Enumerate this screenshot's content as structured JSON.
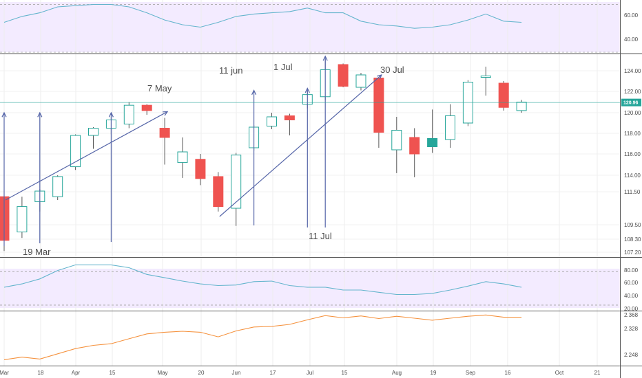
{
  "chart_data": {
    "type": "candlestick",
    "price_panel": {
      "y_ticks": [
        "124.00",
        "122.00",
        "120.00",
        "118.00",
        "116.00",
        "114.00",
        "111.50",
        "109.50",
        "108.30",
        "107.20"
      ],
      "last_price_label": "120.96",
      "last_price": 120.96,
      "colors": {
        "up_body": "#ffffff",
        "up_border": "#26a69a",
        "down": "#ef5350",
        "filled_up": "#26a69a",
        "wick": "#555555",
        "last_line": "#26a69a",
        "arrow": "#5565a8"
      },
      "candles": [
        {
          "open": 111.2,
          "high": 111.6,
          "low": 107.3,
          "close": 108.2,
          "style": "down"
        },
        {
          "open": 108.9,
          "high": 111.2,
          "low": 108.4,
          "close": 110.6,
          "style": "up"
        },
        {
          "open": 110.9,
          "high": 111.9,
          "low": 110.3,
          "close": 111.6,
          "style": "up"
        },
        {
          "open": 111.2,
          "high": 114.0,
          "low": 111.0,
          "close": 113.8,
          "style": "up"
        },
        {
          "open": 114.8,
          "high": 117.9,
          "low": 114.5,
          "close": 117.8,
          "style": "up"
        },
        {
          "open": 117.8,
          "high": 118.6,
          "low": 116.5,
          "close": 118.5,
          "style": "up"
        },
        {
          "open": 118.5,
          "high": 119.6,
          "low": 117.9,
          "close": 119.3,
          "style": "up"
        },
        {
          "open": 118.9,
          "high": 121.0,
          "low": 118.5,
          "close": 120.7,
          "style": "up"
        },
        {
          "open": 120.7,
          "high": 120.8,
          "low": 119.8,
          "close": 120.2,
          "style": "down"
        },
        {
          "open": 118.5,
          "high": 119.5,
          "low": 115.0,
          "close": 117.6,
          "style": "down"
        },
        {
          "open": 116.2,
          "high": 117.6,
          "low": 113.6,
          "close": 115.2,
          "style": "up"
        },
        {
          "open": 115.5,
          "high": 116.0,
          "low": 112.5,
          "close": 113.5,
          "style": "down"
        },
        {
          "open": 113.8,
          "high": 114.3,
          "low": 110.3,
          "close": 110.6,
          "style": "down"
        },
        {
          "open": 110.5,
          "high": 116.1,
          "low": 109.4,
          "close": 115.9,
          "style": "up"
        },
        {
          "open": 116.6,
          "high": 118.8,
          "low": 116.3,
          "close": 118.6,
          "style": "up"
        },
        {
          "open": 118.7,
          "high": 120.0,
          "low": 118.4,
          "close": 119.6,
          "style": "up"
        },
        {
          "open": 119.7,
          "high": 119.9,
          "low": 117.8,
          "close": 119.3,
          "style": "down"
        },
        {
          "open": 120.8,
          "high": 122.0,
          "low": 120.4,
          "close": 121.7,
          "style": "up"
        },
        {
          "open": 121.5,
          "high": 125.1,
          "low": 121.2,
          "close": 124.1,
          "style": "up"
        },
        {
          "open": 124.6,
          "high": 124.7,
          "low": 122.4,
          "close": 122.5,
          "style": "down"
        },
        {
          "open": 122.4,
          "high": 123.8,
          "low": 122.1,
          "close": 123.6,
          "style": "up"
        },
        {
          "open": 123.3,
          "high": 123.4,
          "low": 116.6,
          "close": 118.1,
          "style": "down"
        },
        {
          "open": 116.4,
          "high": 119.6,
          "low": 114.2,
          "close": 118.3,
          "style": "up"
        },
        {
          "open": 117.6,
          "high": 118.5,
          "low": 113.7,
          "close": 116.0,
          "style": "down"
        },
        {
          "open": 116.7,
          "high": 120.3,
          "low": 116.1,
          "close": 117.5,
          "style": "filled_up"
        },
        {
          "open": 117.4,
          "high": 120.8,
          "low": 116.6,
          "close": 119.7,
          "style": "up"
        },
        {
          "open": 119.0,
          "high": 123.1,
          "low": 118.7,
          "close": 122.9,
          "style": "up"
        },
        {
          "open": 123.4,
          "high": 124.4,
          "low": 121.6,
          "close": 123.5,
          "style": "up"
        },
        {
          "open": 122.8,
          "high": 123.0,
          "low": 120.2,
          "close": 120.5,
          "style": "down"
        },
        {
          "open": 120.2,
          "high": 121.2,
          "low": 120.0,
          "close": 121.0,
          "style": "up"
        }
      ],
      "vertical_arrows": [
        {
          "candle": 0,
          "top": 120.0
        },
        {
          "candle": 2,
          "top": 120.0
        },
        {
          "candle": 6,
          "top": 120.0
        },
        {
          "candle": 14,
          "top": 122.1
        },
        {
          "candle": 17,
          "top": 122.3
        },
        {
          "candle": 18,
          "top": 125.4
        }
      ],
      "diagonal_arrows": [
        {
          "from_candle": 0,
          "from": 111.0,
          "to_candle": 9,
          "to": 120.1
        },
        {
          "from_candle": 12,
          "from": 110.0,
          "to_candle": 21,
          "to": 123.6
        }
      ],
      "annotations": [
        "19 Mar",
        "7 May",
        "11 jun",
        "1 Jul",
        "11 Jul",
        "30 Jul"
      ]
    },
    "top_indicator": {
      "y_ticks": [
        "60.00",
        "40.00"
      ],
      "ylim": [
        30,
        72
      ],
      "levels": [
        70,
        30
      ],
      "values": [
        55,
        60,
        63,
        68,
        69,
        70,
        70,
        68,
        63,
        57,
        53,
        51,
        55,
        60,
        62,
        63,
        64,
        67,
        63,
        63,
        56,
        53,
        52,
        50,
        51,
        53,
        57,
        62,
        56,
        55
      ]
    },
    "mid_indicator": {
      "y_ticks": [
        "80.00",
        "60.00",
        "40.00",
        "20.00"
      ],
      "ylim": [
        15,
        95
      ],
      "levels": [
        80,
        20
      ],
      "values": [
        52,
        58,
        67,
        82,
        92,
        92,
        92,
        87,
        75,
        69,
        63,
        58,
        55,
        56,
        62,
        63,
        55,
        52,
        52,
        47,
        47,
        43,
        39,
        39,
        41,
        47,
        54,
        62,
        58,
        52
      ]
    },
    "bottom_indicator": {
      "y_ticks": [
        "2.368",
        "2.328",
        "2.248"
      ],
      "ylim": [
        2.22,
        2.38
      ],
      "values": [
        2.234,
        2.242,
        2.236,
        2.252,
        2.268,
        2.278,
        2.283,
        2.298,
        2.313,
        2.318,
        2.321,
        2.318,
        2.304,
        2.322,
        2.334,
        2.336,
        2.342,
        2.356,
        2.369,
        2.362,
        2.368,
        2.36,
        2.367,
        2.361,
        2.355,
        2.361,
        2.367,
        2.371,
        2.364,
        2.364
      ]
    },
    "x_tick_labels": [
      "Mar",
      "18",
      "Apr",
      "15",
      "May",
      "20",
      "Jun",
      "17",
      "Jul",
      "15",
      "Aug",
      "19",
      "Sep",
      "16",
      "Oct",
      "21"
    ]
  }
}
